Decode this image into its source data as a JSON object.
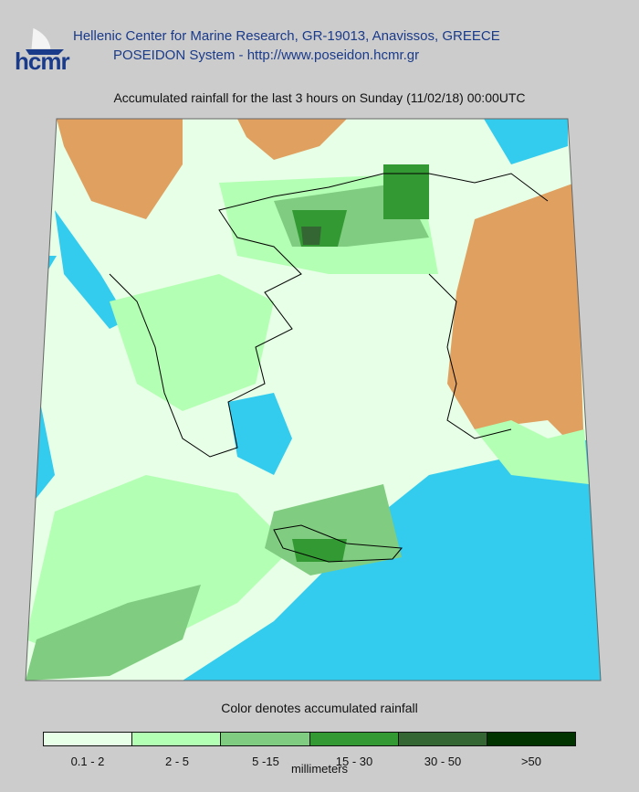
{
  "header": {
    "logo_text": "hcmr",
    "line1": "Hellenic Center for Marine Research, GR-19013, Anavissos, GREECE",
    "line2": "POSEIDON System - http://www.poseidon.hcmr.gr"
  },
  "title": "Accumulated rainfall for the last 3 hours on Sunday (11/02/18) 00:00UTC",
  "map_colors": {
    "sea": "#33ccee",
    "dry_land": "#e0a060",
    "coastline": "#000000"
  },
  "legend": {
    "title": "Color denotes accumulated rainfall",
    "units": "millimeters",
    "classes": [
      {
        "label": "0.1 - 2",
        "color": "#e6ffe6"
      },
      {
        "label": "2 - 5",
        "color": "#b3ffb3"
      },
      {
        "label": "5 -15",
        "color": "#80cc80"
      },
      {
        "label": "15 - 30",
        "color": "#339933"
      },
      {
        "label": "30 - 50",
        "color": "#336633"
      },
      {
        "label": ">50",
        "color": "#003300"
      }
    ]
  }
}
